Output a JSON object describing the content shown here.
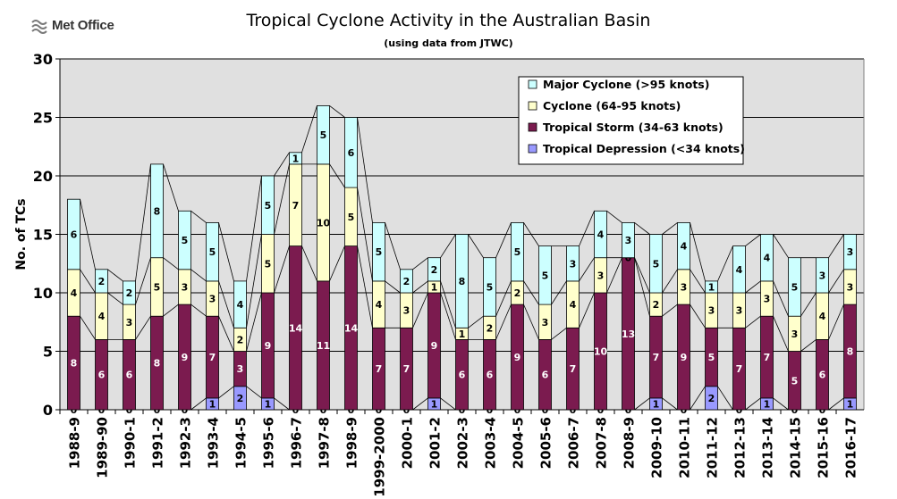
{
  "header": {
    "logo_text": "Met Office",
    "logo_icon": "met-office-wave-icon"
  },
  "chart_data": {
    "type": "bar",
    "stacked": true,
    "title": "Tropical Cyclone Activity in the Australian Basin",
    "subtitle": "(using data from JTWC)",
    "ylabel": "No. of TCs",
    "xlabel": "",
    "ylim": [
      0,
      30
    ],
    "yticks": [
      0,
      5,
      10,
      15,
      20,
      25,
      30
    ],
    "grid": true,
    "legend_position": "top-right",
    "categories": [
      "1988-9",
      "1989-90",
      "1990-1",
      "1991-2",
      "1992-3",
      "1993-4",
      "1994-5",
      "1995-6",
      "1996-7",
      "1997-8",
      "1998-9",
      "1999-2000",
      "2000-1",
      "2001-2",
      "2002-3",
      "2003-4",
      "2004-5",
      "2005-6",
      "2006-7",
      "2007-8",
      "2008-9",
      "2009-10",
      "2010-11",
      "2011-12",
      "2012-13",
      "2013-14",
      "2014-15",
      "2015-16",
      "2016-17"
    ],
    "series": [
      {
        "name": "Tropical Depression (<34 knots)",
        "color": "#9999ff",
        "values": [
          0,
          0,
          0,
          0,
          0,
          1,
          2,
          1,
          0,
          0,
          0,
          0,
          0,
          1,
          0,
          0,
          0,
          0,
          0,
          0,
          0,
          1,
          0,
          2,
          0,
          1,
          0,
          0,
          1
        ]
      },
      {
        "name": "Tropical Storm (34-63 knots)",
        "color": "#7b1b4f",
        "values": [
          8,
          6,
          6,
          8,
          9,
          7,
          3,
          9,
          14,
          11,
          14,
          7,
          7,
          9,
          6,
          6,
          9,
          6,
          7,
          10,
          13,
          7,
          9,
          5,
          7,
          7,
          5,
          6,
          8
        ]
      },
      {
        "name": "Cyclone (64-95 knots)",
        "color": "#ffffcc",
        "values": [
          4,
          4,
          3,
          5,
          3,
          3,
          2,
          5,
          7,
          10,
          5,
          4,
          3,
          1,
          1,
          2,
          2,
          3,
          4,
          3,
          0,
          2,
          3,
          3,
          3,
          3,
          3,
          4,
          3
        ]
      },
      {
        "name": "Major Cyclone (>95 knots)",
        "color": "#ccffff",
        "values": [
          6,
          2,
          2,
          8,
          5,
          5,
          4,
          5,
          1,
          5,
          6,
          5,
          2,
          2,
          8,
          5,
          5,
          5,
          3,
          4,
          3,
          5,
          4,
          1,
          4,
          4,
          5,
          3,
          3
        ]
      }
    ],
    "colors": {
      "plot_background": "#e0e0e0",
      "outline": "#000000"
    }
  }
}
